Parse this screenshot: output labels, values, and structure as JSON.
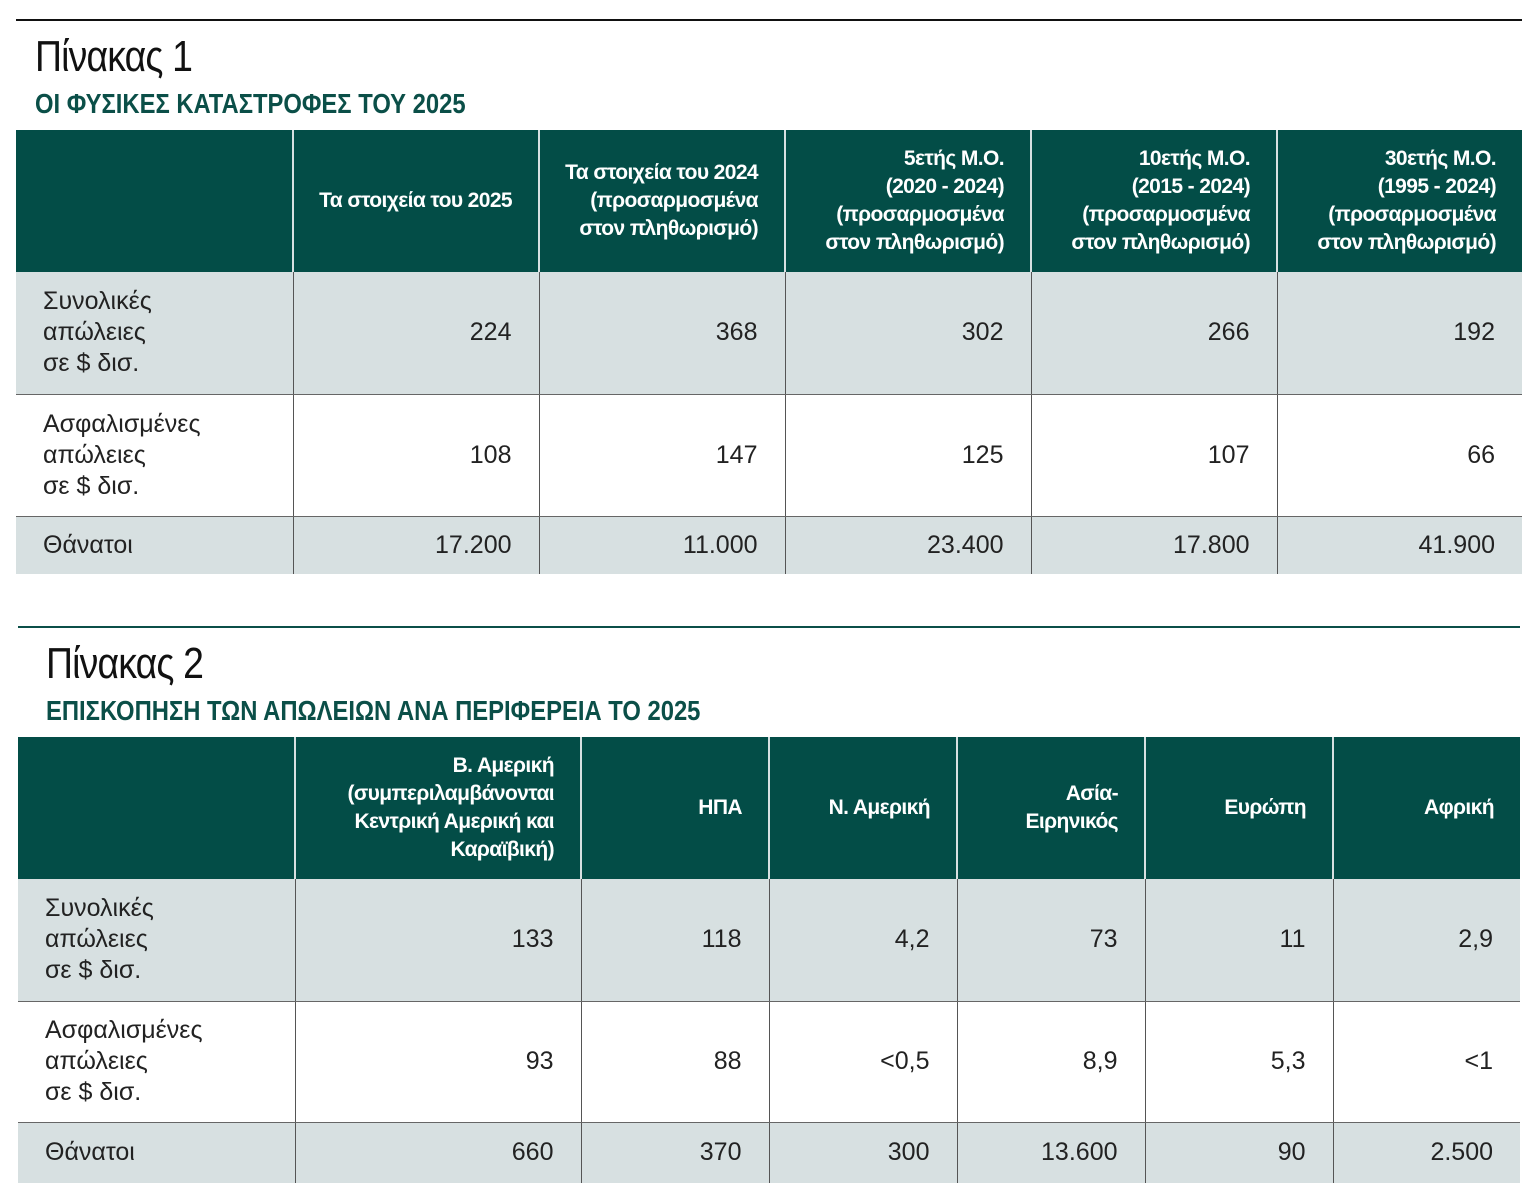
{
  "table1": {
    "title": "Πίνακας 1",
    "subtitle": "ΟΙ ΦΥΣΙΚΕΣ ΚΑΤΑΣΤΡΟΦΕΣ ΤΟΥ 2025",
    "columns": [
      "",
      "Τα στοιχεία του 2025",
      "Τα στοιχεία του 2024\n(προσαρμοσμένα\nστον πληθωρισμό)",
      "5ετής Μ.Ο.\n(2020 - 2024)\n(προσαρμοσμένα\nστον πληθωρισμό)",
      "10ετής Μ.Ο.\n(2015 - 2024)\n(προσαρμοσμένα\nστον πληθωρισμό)",
      "30ετής Μ.Ο.\n(1995 - 2024)\n(προσαρμοσμένα\nστον πληθωρισμό)"
    ],
    "rows": [
      [
        "Συνολικές\nαπώλειες\nσε $ δισ.",
        "224",
        "368",
        "302",
        "266",
        "192"
      ],
      [
        "Ασφαλισμένες\nαπώλειες\nσε $ δισ.",
        "108",
        "147",
        "125",
        "107",
        "66"
      ],
      [
        "Θάνατοι",
        "17.200",
        "11.000",
        "23.400",
        "17.800",
        "41.900"
      ]
    ]
  },
  "table2": {
    "title": "Πίνακας 2",
    "subtitle": "ΕΠΙΣΚΟΠΗΣΗ ΤΩΝ ΑΠΩΛΕΙΩΝ ΑΝΑ ΠΕΡΙΦΕΡΕΙΑ ΤΟ 2025",
    "columns": [
      "",
      "Β. Αμερική\n(συμπεριλαμβάνονται\nΚεντρική Αμερική και\nΚαραϊβική)",
      "ΗΠΑ",
      "Ν. Αμερική",
      "Ασία-\nΕιρηνικός",
      "Ευρώπη",
      "Αφρική"
    ],
    "rows": [
      [
        "Συνολικές\nαπώλειες\nσε $ δισ.",
        "133",
        "118",
        "4,2",
        "73",
        "11",
        "2,9"
      ],
      [
        "Ασφαλισμένες\nαπώλειες\nσε $ δισ.",
        "93",
        "88",
        "<0,5",
        "8,9",
        "5,3",
        "<1"
      ],
      [
        "Θάνατοι",
        "660",
        "370",
        "300",
        "13.600",
        "90",
        "2.500"
      ]
    ]
  },
  "colors": {
    "header_bg": "#034d47",
    "subtitle": "#0b4f48",
    "shaded_row": "#d7e0e1"
  }
}
